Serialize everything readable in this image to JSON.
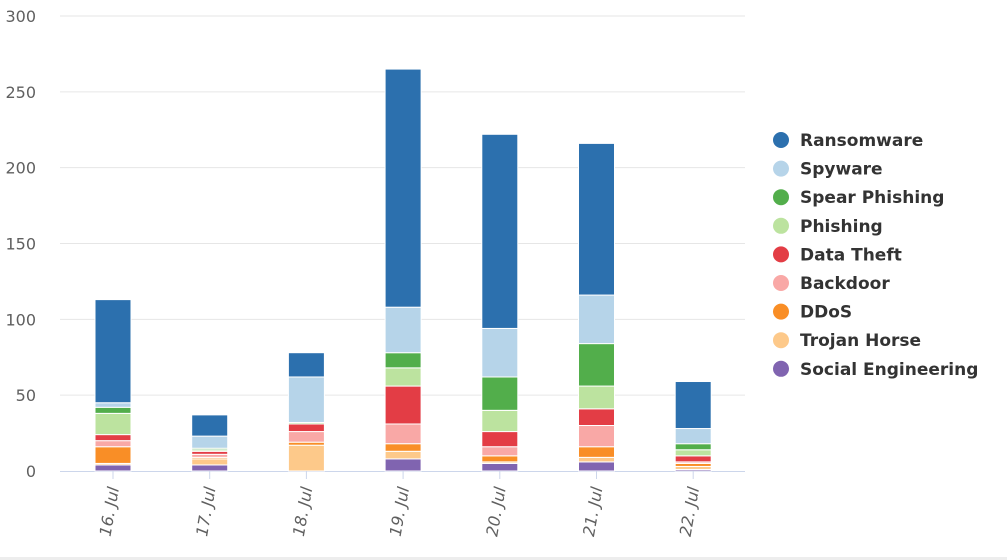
{
  "chart_data": {
    "type": "bar",
    "stacked": true,
    "categories": [
      "16. Jul",
      "17. Jul",
      "18. Jul",
      "19. Jul",
      "20. Jul",
      "21. Jul",
      "22. Jul"
    ],
    "ylim": [
      0,
      300
    ],
    "yticks": [
      0,
      50,
      100,
      150,
      200,
      250,
      300
    ],
    "grid": true,
    "legend_position": "right",
    "series": [
      {
        "name": "Social Engineering",
        "color": "#8064b0",
        "values": [
          4,
          4,
          0,
          8,
          5,
          6,
          1
        ]
      },
      {
        "name": "Trojan Horse",
        "color": "#fdc98a",
        "values": [
          1,
          4,
          17,
          5,
          1,
          3,
          2
        ]
      },
      {
        "name": "DDoS",
        "color": "#f98e26",
        "values": [
          11,
          1,
          2,
          5,
          4,
          7,
          2
        ]
      },
      {
        "name": "Backdoor",
        "color": "#f9a8a6",
        "values": [
          4,
          2,
          7,
          13,
          6,
          14,
          1
        ]
      },
      {
        "name": "Data Theft",
        "color": "#e33d45",
        "values": [
          4,
          2,
          5,
          25,
          10,
          11,
          4
        ]
      },
      {
        "name": "Phishing",
        "color": "#bce39f",
        "values": [
          14,
          1,
          1,
          12,
          14,
          15,
          4
        ]
      },
      {
        "name": "Spear Phishing",
        "color": "#52ae4b",
        "values": [
          4,
          1,
          0,
          10,
          22,
          28,
          4
        ]
      },
      {
        "name": "Spyware",
        "color": "#b6d4e9",
        "values": [
          3,
          8,
          30,
          30,
          32,
          32,
          10
        ]
      },
      {
        "name": "Ransomware",
        "color": "#2c70ae",
        "values": [
          68,
          14,
          16,
          157,
          128,
          100,
          31
        ]
      }
    ]
  }
}
